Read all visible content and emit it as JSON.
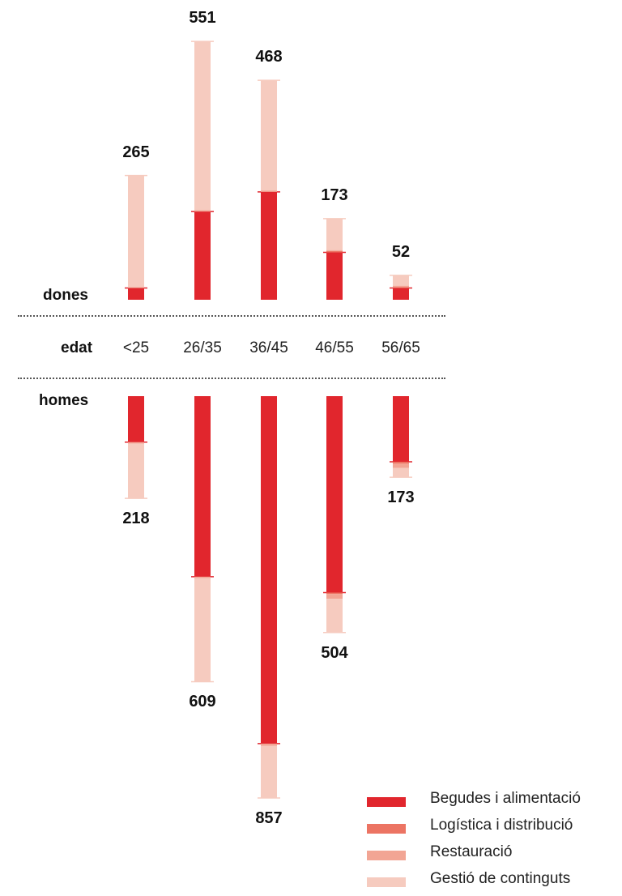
{
  "chart_data": {
    "type": "bar",
    "subtype": "diverging-stacked",
    "axis_label": "edat",
    "categories": [
      "<25",
      "26/35",
      "36/45",
      "46/55",
      "56/65"
    ],
    "groups": [
      {
        "label": "dones",
        "totals": [
          265,
          551,
          468,
          173,
          52
        ],
        "segments": [
          {
            "series": "Begudes i alimentació",
            "values": [
              25,
              188,
              230,
              101,
              25
            ]
          },
          {
            "series": "Logística i distribució",
            "values": [
              0,
              0,
              0,
              3,
              2
            ]
          },
          {
            "series": "Restauració",
            "values": [
              2,
              3,
              3,
              2,
              3
            ]
          },
          {
            "series": "Gestió de continguts",
            "values": [
              238,
              360,
              235,
              67,
              22
            ]
          }
        ]
      },
      {
        "label": "homes",
        "totals": [
          218,
          609,
          857,
          504,
          173
        ],
        "segments": [
          {
            "series": "Begudes i alimentació",
            "values": [
              98,
              385,
              741,
              419,
              140
            ]
          },
          {
            "series": "Logística i distribució",
            "values": [
              0,
              0,
              0,
              3,
              4
            ]
          },
          {
            "series": "Restauració",
            "values": [
              3,
              3,
              5,
              10,
              9
            ]
          },
          {
            "series": "Gestió de continguts",
            "values": [
              117,
              221,
              111,
              72,
              20
            ]
          }
        ]
      }
    ],
    "legend": {
      "position": "bottom-right",
      "items": [
        {
          "label": "Begudes i alimentació",
          "color": "#e1262d"
        },
        {
          "label": "Logística i distribució",
          "color": "#ec7463"
        },
        {
          "label": "Restauració",
          "color": "#f2a594"
        },
        {
          "label": "Gestió de continguts",
          "color": "#f6cbbf"
        }
      ]
    }
  }
}
